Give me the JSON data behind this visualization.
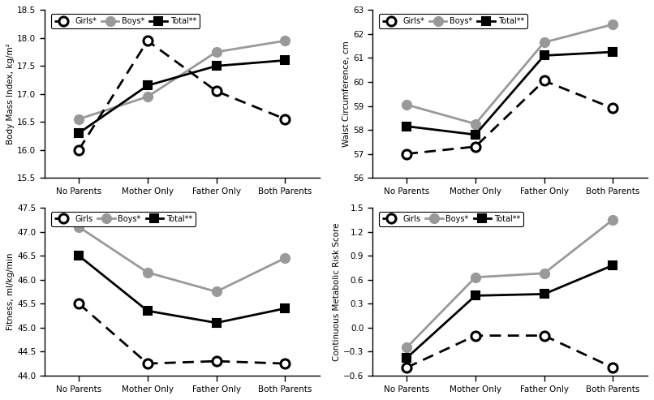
{
  "x_labels": [
    "No Parents",
    "Mother Only",
    "Father Only",
    "Both Parents"
  ],
  "x_positions": [
    0,
    1,
    2,
    3
  ],
  "bmi": {
    "ylabel": "Body Mass Index, kg/m²",
    "ylim": [
      15.5,
      18.5
    ],
    "yticks": [
      15.5,
      16.0,
      16.5,
      17.0,
      17.5,
      18.0,
      18.5
    ],
    "girls": [
      16.0,
      17.95,
      17.05,
      16.55
    ],
    "boys": [
      16.55,
      16.95,
      17.75,
      17.95
    ],
    "total": [
      16.3,
      17.15,
      17.5,
      17.6
    ],
    "legend": [
      "Girls*",
      "Boys*",
      "Total**"
    ]
  },
  "waist": {
    "ylabel": "Waist Circumference, cm",
    "ylim": [
      56,
      63
    ],
    "yticks": [
      56,
      57,
      58,
      59,
      60,
      61,
      62,
      63
    ],
    "girls": [
      57.0,
      57.3,
      60.05,
      58.9
    ],
    "boys": [
      59.05,
      58.25,
      61.65,
      62.4
    ],
    "total": [
      58.15,
      57.8,
      61.1,
      61.25
    ],
    "legend": [
      "Girls*",
      "Boys*",
      "Total**"
    ]
  },
  "fitness": {
    "ylabel": "Fitness, ml/kg/min",
    "ylim": [
      44.0,
      47.5
    ],
    "yticks": [
      44.0,
      44.5,
      45.0,
      45.5,
      46.0,
      46.5,
      47.0,
      47.5
    ],
    "girls": [
      45.5,
      44.25,
      44.3,
      44.25
    ],
    "boys": [
      47.1,
      46.15,
      45.75,
      46.45
    ],
    "total": [
      46.5,
      45.35,
      45.1,
      45.4
    ],
    "legend": [
      "Girls",
      "Boys*",
      "Total**"
    ]
  },
  "metabolic": {
    "ylabel": "Continuous Metabolic Risk Score",
    "ylim": [
      -0.6,
      1.5
    ],
    "yticks": [
      -0.6,
      -0.3,
      0.0,
      0.3,
      0.6,
      0.9,
      1.2,
      1.5
    ],
    "girls": [
      -0.5,
      -0.1,
      -0.1,
      -0.5
    ],
    "boys": [
      -0.25,
      0.63,
      0.68,
      1.35
    ],
    "total": [
      -0.38,
      0.4,
      0.42,
      0.78
    ],
    "legend": [
      "Girls",
      "Boys*",
      "Total**"
    ]
  },
  "girls_color": "#000000",
  "boys_color": "#999999",
  "total_color": "#000000",
  "marker_size": 8,
  "line_width": 2.0
}
